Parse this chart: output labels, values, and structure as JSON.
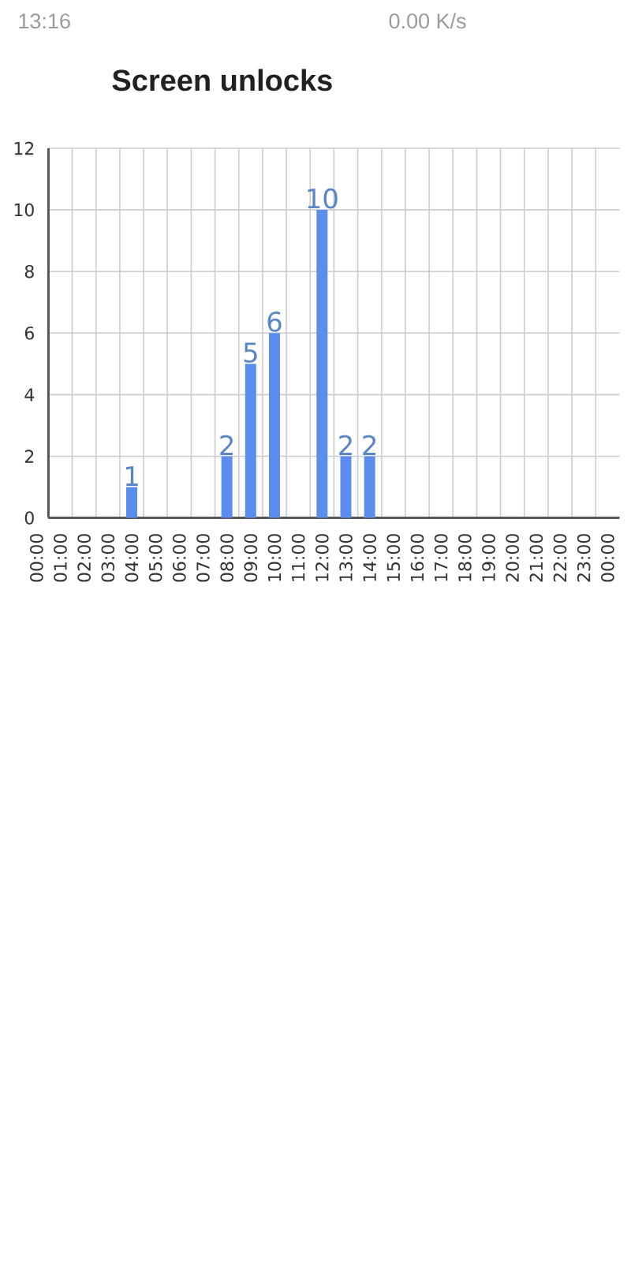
{
  "chart_data": {
    "type": "bar",
    "title": "Screen unlocks",
    "annotations": [
      "13:16",
      "0.00 K/s"
    ],
    "categories": [
      "00:00",
      "01:00",
      "02:00",
      "03:00",
      "04:00",
      "05:00",
      "06:00",
      "07:00",
      "08:00",
      "09:00",
      "10:00",
      "11:00",
      "12:00",
      "13:00",
      "14:00",
      "15:00",
      "16:00",
      "17:00",
      "18:00",
      "19:00",
      "20:00",
      "21:00",
      "22:00",
      "23:00",
      "00:00"
    ],
    "values": [
      0,
      0,
      0,
      0,
      1,
      0,
      0,
      0,
      2,
      5,
      6,
      0,
      10,
      2,
      2,
      0,
      0,
      0,
      0,
      0,
      0,
      0,
      0,
      0,
      0
    ],
    "value_labels": [
      null,
      null,
      null,
      null,
      "1",
      null,
      null,
      null,
      "2",
      "5",
      "6",
      null,
      "10",
      "2",
      "2",
      null,
      null,
      null,
      null,
      null,
      null,
      null,
      null,
      null,
      null
    ],
    "color": "#5b8def",
    "ylim": [
      0,
      12
    ],
    "yticks": [
      0,
      2,
      4,
      6,
      8,
      10,
      12
    ],
    "grid": true
  }
}
